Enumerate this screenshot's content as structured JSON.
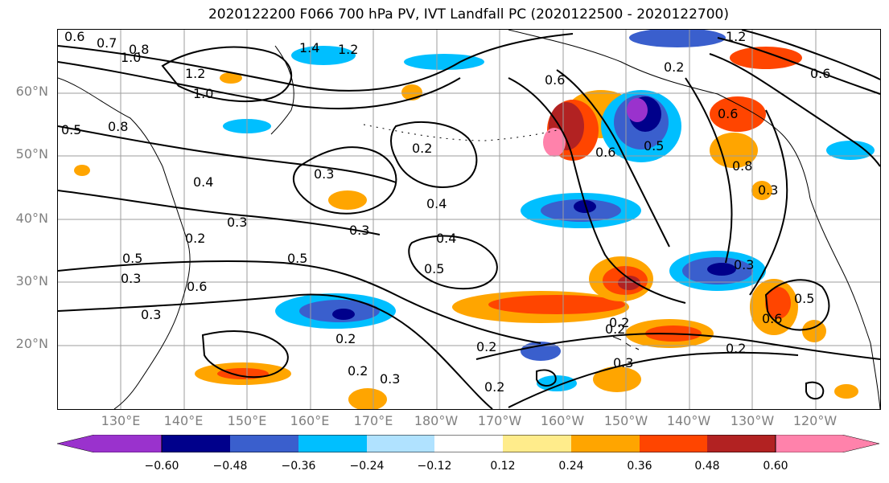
{
  "title": "2020122200 F066 700 hPa PV, IVT Landfall PC (2020122500 - 2020122700)",
  "lat_labels": [
    "60°N",
    "50°N",
    "40°N",
    "30°N",
    "20°N"
  ],
  "lon_labels": [
    "130°E",
    "140°E",
    "150°E",
    "160°E",
    "170°E",
    "180°W",
    "170°W",
    "160°W",
    "150°W",
    "140°W",
    "130°W",
    "120°W"
  ],
  "contour_labels": [
    "0.6",
    "0.7",
    "0.8",
    "1.0",
    "1.4",
    "1.2",
    "1.0",
    "1.2",
    "0.8",
    "0.5",
    "0.4",
    "0.3",
    "0.2",
    "0.2",
    "0.4",
    "0.5",
    "0.3",
    "0.4",
    "0.3",
    "0.2",
    "0.2",
    "0.3",
    "0.6",
    "0.6",
    "0.5",
    "0.3",
    "0.2",
    "0.3",
    "0.2",
    "0.6",
    "0.5",
    "0.3",
    "0.2",
    "0.8",
    "0.5",
    "0.6",
    "0.2",
    "0.3",
    "0.3",
    "0.2",
    "0.2",
    "0.5",
    "0.6",
    "1.2",
    "0.6"
  ],
  "colorbar": {
    "ticks": [
      "−0.60",
      "−0.48",
      "−0.36",
      "−0.24",
      "−0.12",
      "0.12",
      "0.24",
      "0.36",
      "0.48",
      "0.60"
    ],
    "colors": [
      "#9a32cd",
      "#00008b",
      "#3a5fcd",
      "#00bfff",
      "#b0e2ff",
      "#ffffff",
      "#ffec8b",
      "#ffa500",
      "#ff4500",
      "#b22222",
      "#ff82ab"
    ]
  }
}
